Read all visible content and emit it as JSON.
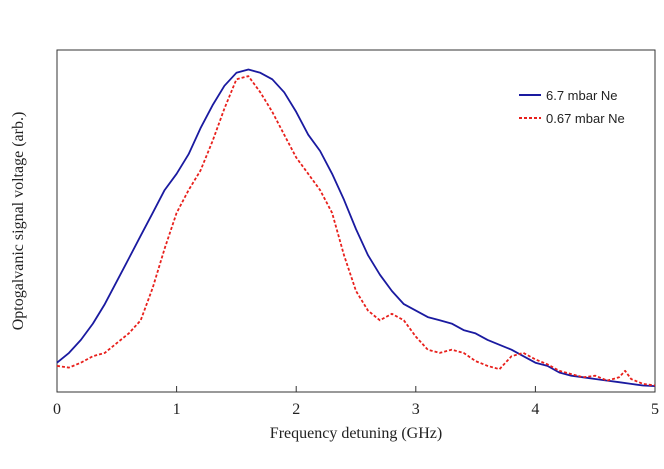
{
  "chart_data": {
    "type": "line",
    "title": "",
    "xlabel": "Frequency detuning (GHz)",
    "ylabel": "Optogalvanic signal voltage (arb.)",
    "xlim": [
      0,
      5
    ],
    "ylim": [
      0,
      1.05
    ],
    "xticks": [
      0,
      1,
      2,
      3,
      4,
      5
    ],
    "y_tick_labels_shown": false,
    "grid": false,
    "legend_position": "top-right",
    "series": [
      {
        "name": "6.7 mbar Ne",
        "style": "solid",
        "color": "#1a1aa0",
        "x": [
          0,
          0.1,
          0.2,
          0.3,
          0.4,
          0.5,
          0.6,
          0.7,
          0.8,
          0.9,
          1.0,
          1.1,
          1.2,
          1.3,
          1.4,
          1.5,
          1.6,
          1.7,
          1.8,
          1.9,
          2.0,
          2.1,
          2.2,
          2.3,
          2.4,
          2.5,
          2.6,
          2.7,
          2.8,
          2.9,
          3.0,
          3.1,
          3.2,
          3.3,
          3.4,
          3.5,
          3.6,
          3.7,
          3.8,
          3.9,
          4.0,
          4.1,
          4.2,
          4.3,
          4.4,
          4.5,
          4.6,
          4.7,
          4.8,
          4.9,
          5.0
        ],
        "y": [
          0.09,
          0.12,
          0.16,
          0.21,
          0.27,
          0.34,
          0.41,
          0.48,
          0.55,
          0.62,
          0.67,
          0.73,
          0.81,
          0.88,
          0.94,
          0.98,
          0.99,
          0.98,
          0.96,
          0.92,
          0.86,
          0.79,
          0.74,
          0.67,
          0.59,
          0.5,
          0.42,
          0.36,
          0.31,
          0.27,
          0.25,
          0.23,
          0.22,
          0.21,
          0.19,
          0.18,
          0.16,
          0.145,
          0.13,
          0.11,
          0.09,
          0.08,
          0.06,
          0.05,
          0.045,
          0.04,
          0.035,
          0.03,
          0.025,
          0.02,
          0.018
        ]
      },
      {
        "name": "0.67 mbar Ne",
        "style": "dashed",
        "color": "#e8201c",
        "x": [
          0,
          0.1,
          0.2,
          0.3,
          0.4,
          0.5,
          0.6,
          0.7,
          0.8,
          0.9,
          1.0,
          1.1,
          1.2,
          1.3,
          1.4,
          1.5,
          1.6,
          1.7,
          1.8,
          1.9,
          2.0,
          2.1,
          2.2,
          2.3,
          2.4,
          2.5,
          2.6,
          2.7,
          2.8,
          2.9,
          3.0,
          3.1,
          3.2,
          3.3,
          3.4,
          3.5,
          3.6,
          3.7,
          3.8,
          3.9,
          4.0,
          4.1,
          4.2,
          4.3,
          4.4,
          4.5,
          4.6,
          4.7,
          4.75,
          4.8,
          4.9,
          5.0
        ],
        "y": [
          0.08,
          0.075,
          0.09,
          0.11,
          0.12,
          0.15,
          0.18,
          0.22,
          0.32,
          0.44,
          0.55,
          0.62,
          0.68,
          0.77,
          0.87,
          0.96,
          0.97,
          0.92,
          0.86,
          0.79,
          0.72,
          0.67,
          0.62,
          0.55,
          0.42,
          0.31,
          0.25,
          0.22,
          0.24,
          0.22,
          0.17,
          0.13,
          0.12,
          0.13,
          0.12,
          0.095,
          0.08,
          0.07,
          0.11,
          0.12,
          0.1,
          0.085,
          0.065,
          0.055,
          0.045,
          0.05,
          0.035,
          0.045,
          0.065,
          0.04,
          0.025,
          0.02
        ]
      }
    ]
  }
}
